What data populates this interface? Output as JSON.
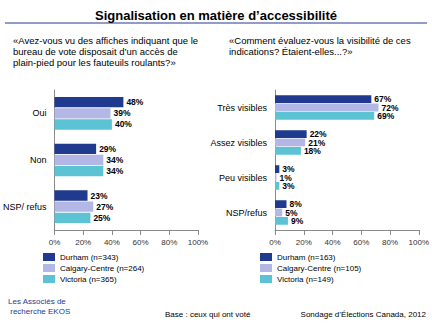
{
  "title": "Signalisation en matière d’accessibilité",
  "base": "Base : ceux qui ont voté",
  "source": "Sondage d’Élections Canada, 2012",
  "logo": "Les Associés de recherche EKOS",
  "chart_data": [
    {
      "type": "bar",
      "orientation": "horizontal",
      "title": "«Avez-vous vu des affiches indiquant que le bureau de vote disposait d’un accès de plain-pied pour les fauteuils roulants?»",
      "categories": [
        "Oui",
        "Non",
        "NSP/ refus"
      ],
      "series": [
        {
          "name": "Durham (n=343)",
          "color": "#1f3a8f",
          "values": [
            48,
            29,
            23
          ],
          "value_labels": [
            "48%",
            "29%",
            "23%"
          ]
        },
        {
          "name": "Calgary-Centre (n=264)",
          "color": "#b3b7e6",
          "values": [
            39,
            34,
            27
          ],
          "value_labels": [
            "39%",
            "34%",
            "27%"
          ]
        },
        {
          "name": "Victoria (n=365)",
          "color": "#5bc3d3",
          "values": [
            40,
            34,
            25
          ],
          "value_labels": [
            "40%",
            "34%",
            "25%"
          ]
        }
      ],
      "xlim": [
        0,
        100
      ],
      "xticks": [
        {
          "value": 0,
          "label": "0%"
        },
        {
          "value": 20,
          "label": "20%"
        },
        {
          "value": 40,
          "label": "40%"
        },
        {
          "value": 60,
          "label": "60%"
        },
        {
          "value": 80,
          "label": "80%"
        },
        {
          "value": 100,
          "label": "100%"
        }
      ],
      "grid": false,
      "data_labels": true,
      "legend": "bottom"
    },
    {
      "type": "bar",
      "orientation": "horizontal",
      "title": "«Comment évaluez-vous la visibilité de ces indications? Étaient-elles...?»",
      "categories": [
        "Très visibles",
        "Assez visibles",
        "Peu visibles",
        "NSP/refus"
      ],
      "series": [
        {
          "name": "Durham (n=163)",
          "color": "#1f3a8f",
          "values": [
            67,
            22,
            3,
            8
          ],
          "value_labels": [
            "67%",
            "22%",
            "3%",
            "8%"
          ]
        },
        {
          "name": "Calgary-Centre (n=105)",
          "color": "#b3b7e6",
          "values": [
            72,
            21,
            1,
            5
          ],
          "value_labels": [
            "72%",
            "21%",
            "1%",
            "5%"
          ]
        },
        {
          "name": "Victoria (n=149)",
          "color": "#5bc3d3",
          "values": [
            69,
            18,
            3,
            9
          ],
          "value_labels": [
            "69%",
            "18%",
            "3%",
            "9%"
          ]
        }
      ],
      "xlim": [
        0,
        100
      ],
      "xticks": [
        {
          "value": 0,
          "label": "0%"
        },
        {
          "value": 20,
          "label": "20%"
        },
        {
          "value": 40,
          "label": "40%"
        },
        {
          "value": 60,
          "label": "60%"
        },
        {
          "value": 80,
          "label": "80%"
        },
        {
          "value": 100,
          "label": "100%"
        }
      ],
      "grid": false,
      "data_labels": true,
      "legend": "bottom"
    }
  ]
}
